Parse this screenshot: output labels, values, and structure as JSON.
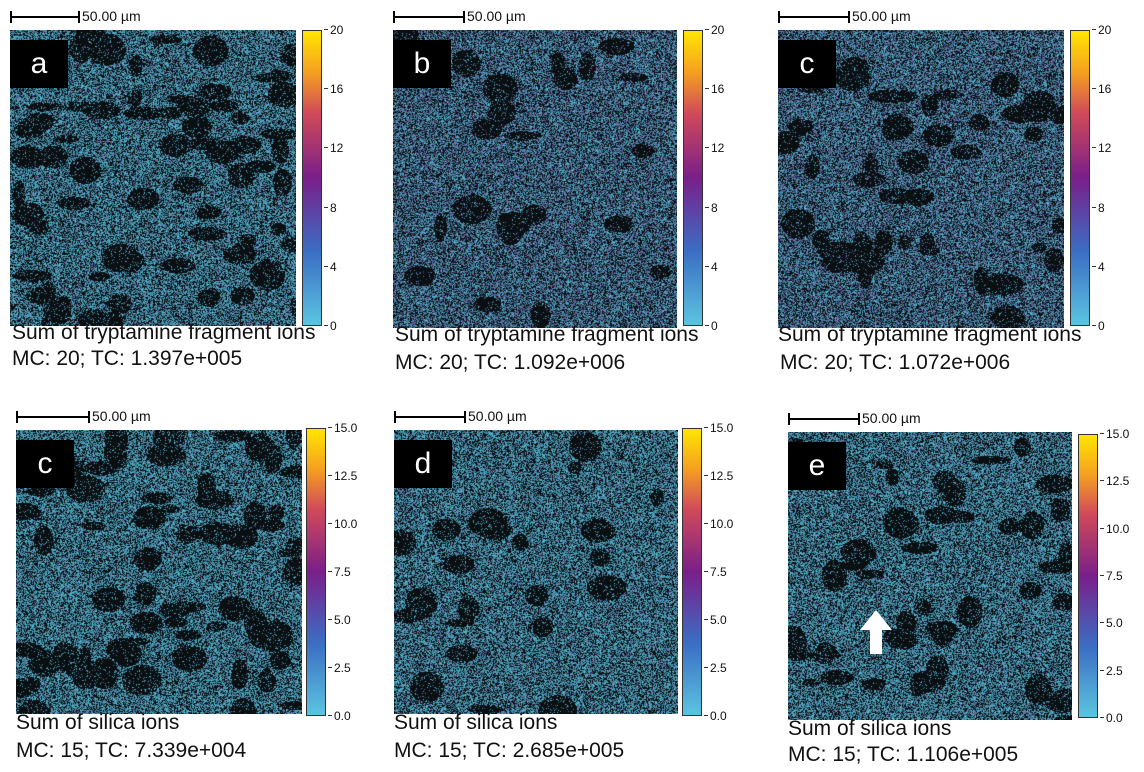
{
  "panels": [
    {
      "letter": "a",
      "scale": "50.00 µm",
      "ticks": [
        "20",
        "16",
        "12",
        "8",
        "4",
        "0"
      ],
      "cap1": "Sum of tryptamine fragment ions",
      "cap2": "MC: 20; TC: 1.397e+005",
      "cmap_fraction": 0.2,
      "holes": "dense"
    },
    {
      "letter": "b",
      "scale": "50.00 µm",
      "ticks": [
        "20",
        "16",
        "12",
        "8",
        "4",
        "0"
      ],
      "cap1": "Sum of tryptamine fragment ions",
      "cap2": "MC: 20; TC: 1.092e+006",
      "cmap_fraction": 0.45,
      "holes": "few"
    },
    {
      "letter": "c",
      "scale": "50.00 µm",
      "ticks": [
        "20",
        "16",
        "12",
        "8",
        "4",
        "0"
      ],
      "cap1": "Sum of tryptamine fragment ions",
      "cap2": "MC: 20; TC: 1.072e+006",
      "cmap_fraction": 0.45,
      "holes": "medium"
    },
    {
      "letter": "c",
      "scale": "50.00 µm",
      "ticks": [
        "15.0",
        "12.5",
        "10.0",
        "7.5",
        "5.0",
        "2.5",
        "0.0"
      ],
      "cap1": "Sum of silica ions",
      "cap2": "MC: 15; TC: 7.339e+004",
      "cmap_fraction": 0.15,
      "holes": "dense"
    },
    {
      "letter": "d",
      "scale": "50.00 µm",
      "ticks": [
        "15.0",
        "12.5",
        "10.0",
        "7.5",
        "5.0",
        "2.5",
        "0.0"
      ],
      "cap1": "Sum of silica ions",
      "cap2": "MC: 15; TC: 2.685e+005",
      "cmap_fraction": 0.2,
      "holes": "few"
    },
    {
      "letter": "e",
      "scale": "50.00 µm",
      "ticks": [
        "15.0",
        "12.5",
        "10.0",
        "7.5",
        "5.0",
        "2.5",
        "0.0"
      ],
      "cap1": "Sum of silica ions",
      "cap2": "MC: 15; TC: 1.106e+005",
      "cmap_fraction": 0.2,
      "holes": "medium"
    }
  ],
  "colors": {
    "low": "#5bc4e0",
    "mid": "#7a1f8a",
    "high": "#ffe600",
    "background": "#0a0f12"
  },
  "arrow_icon": "arrow-up-icon"
}
